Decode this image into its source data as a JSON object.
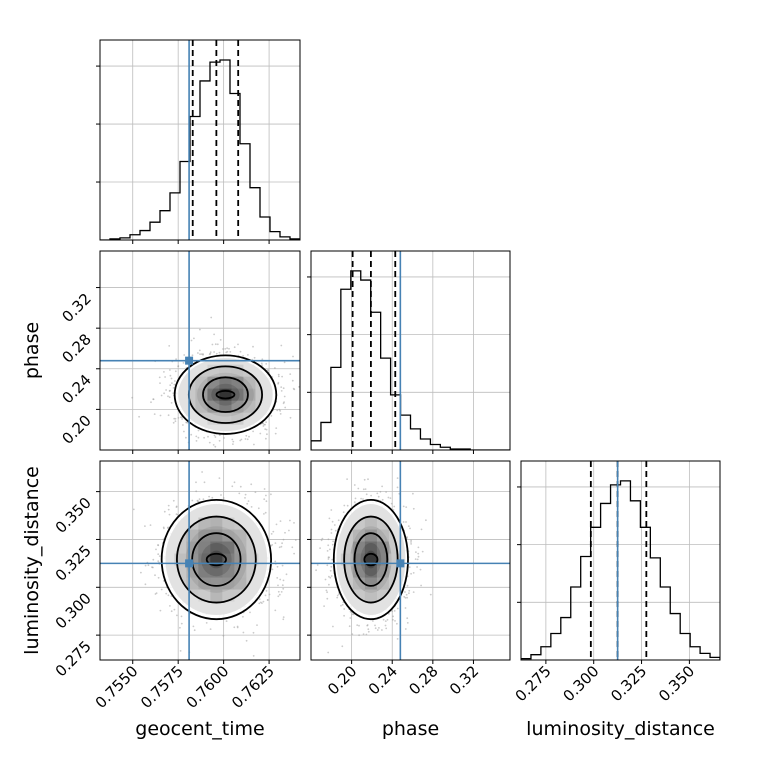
{
  "chart_data": {
    "type": "corner",
    "parameters": [
      "geocent_time",
      "phase",
      "luminosity_distance"
    ],
    "truths": {
      "geocent_time": 0.7581,
      "phase": 0.248,
      "luminosity_distance": 0.3125
    },
    "quantiles": {
      "geocent_time": [
        0.7583,
        0.7596,
        0.7608
      ],
      "phase": [
        0.201,
        0.219,
        0.243
      ],
      "luminosity_distance": [
        0.2985,
        0.3125,
        0.3275
      ]
    },
    "ranges": {
      "geocent_time": [
        0.7532,
        0.7642
      ],
      "phase": [
        0.16,
        0.356
      ],
      "luminosity_distance": [
        0.262,
        0.366
      ]
    },
    "ticks": {
      "geocent_time": [
        "0.7550",
        "0.7575",
        "0.7600",
        "0.7625"
      ],
      "phase": [
        "0.20",
        "0.24",
        "0.28",
        "0.32"
      ],
      "phase_yaxis": [
        "0.20",
        "0.24",
        "0.28",
        "0.32"
      ],
      "luminosity_distance": [
        "0.275",
        "0.300",
        "0.325",
        "0.350"
      ],
      "luminosity_distance_yaxis": [
        "0.275",
        "0.300",
        "0.325",
        "0.350"
      ]
    },
    "axis_labels": {
      "x": [
        "geocent_time",
        "phase",
        "luminosity_distance"
      ],
      "y": [
        "phase",
        "luminosity_distance"
      ]
    },
    "histograms": {
      "geocent_time": {
        "x0": 0.7532,
        "bin_width": 0.00055,
        "counts": [
          0,
          1,
          2,
          5,
          9,
          17,
          28,
          45,
          75,
          118,
          152,
          170,
          172,
          140,
          92,
          50,
          22,
          8,
          3,
          1
        ]
      },
      "phase": {
        "x0": 0.16,
        "bin_width": 0.0098,
        "counts": [
          10,
          30,
          90,
          175,
          195,
          185,
          150,
          100,
          60,
          38,
          23,
          12,
          6,
          3,
          1,
          1,
          0,
          0,
          0,
          0
        ]
      },
      "luminosity_distance": {
        "x0": 0.262,
        "bin_width": 0.0052,
        "counts": [
          1,
          4,
          10,
          20,
          32,
          55,
          78,
          100,
          118,
          132,
          135,
          120,
          100,
          77,
          55,
          35,
          20,
          10,
          5,
          2
        ]
      }
    },
    "joint": [
      {
        "x": "geocent_time",
        "y": "phase",
        "center": [
          0.7601,
          0.2145
        ],
        "spread": [
          0.0013,
          0.018
        ]
      },
      {
        "x": "geocent_time",
        "y": "luminosity_distance",
        "center": [
          0.7596,
          0.3145
        ],
        "spread": [
          0.0014,
          0.0145
        ]
      },
      {
        "x": "phase",
        "y": "luminosity_distance",
        "center": [
          0.219,
          0.3145
        ],
        "spread": [
          0.017,
          0.0145
        ]
      }
    ],
    "colors": {
      "truth": "#4682b4",
      "hist": "#000000",
      "contour": "#000000",
      "points": "#a0a0a0",
      "grid": "#bdbdbd"
    },
    "grid": true
  }
}
